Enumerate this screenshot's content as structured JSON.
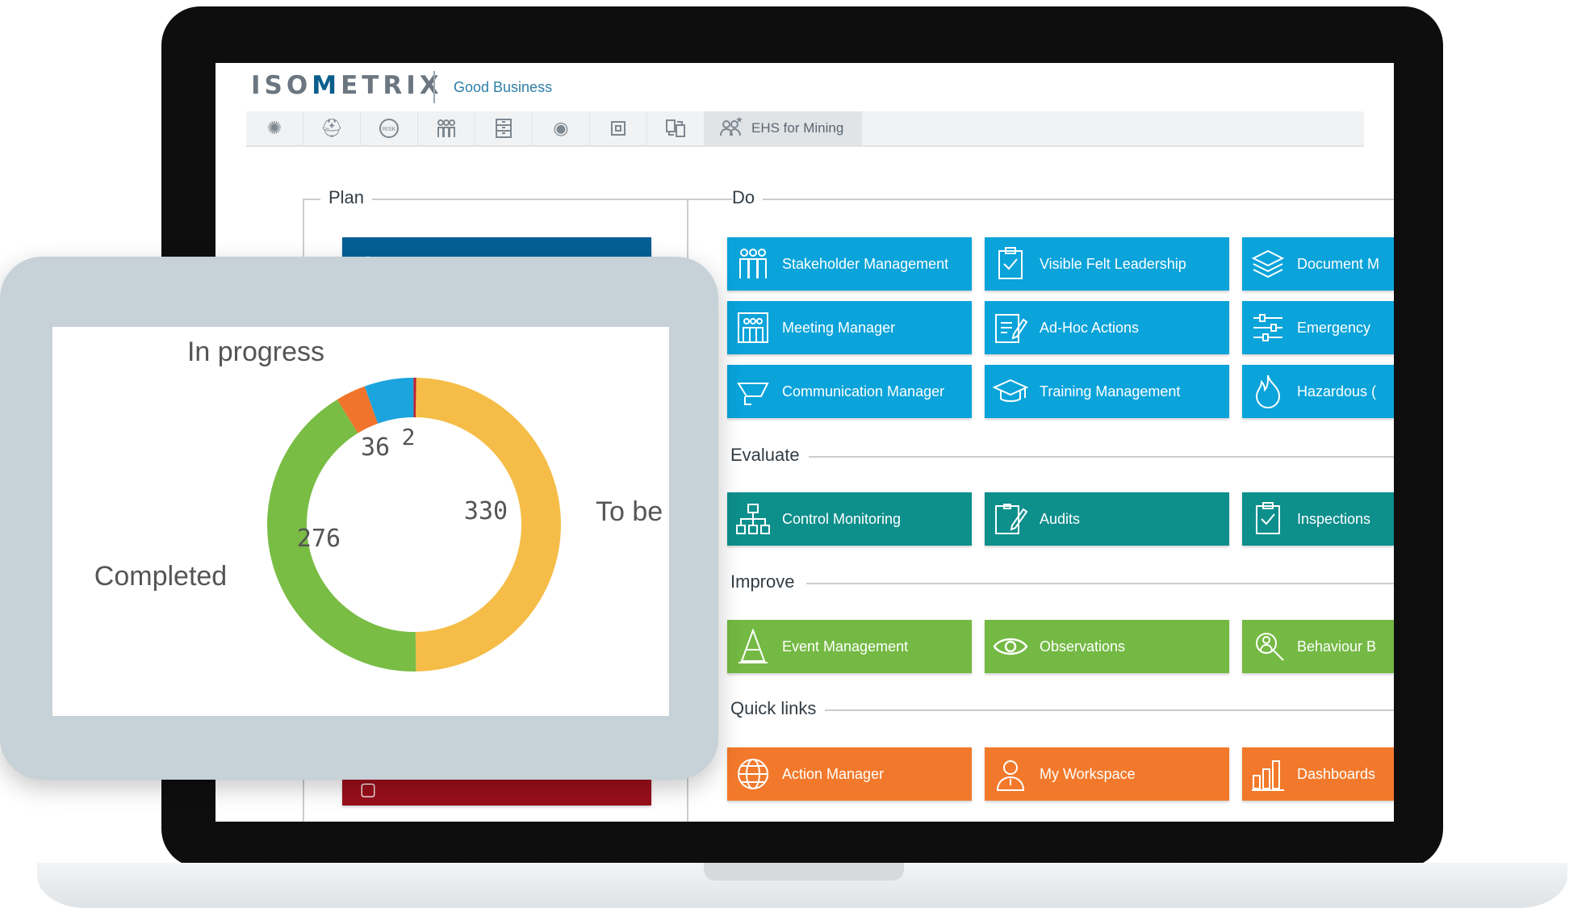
{
  "app": {
    "logo": {
      "prefix": "ISO",
      "accent": "M",
      "suffix": "ETRIX"
    },
    "tagline": "Good Business"
  },
  "toolbar": {
    "icons": [
      "atom-icon",
      "helmet-icon",
      "risk-icon",
      "people-icon",
      "cabinet-icon",
      "eye-icon",
      "chip-icon",
      "transfer-icon"
    ],
    "active_tab": {
      "icon": "users-star-icon",
      "label": "EHS for Mining"
    }
  },
  "sections": {
    "plan": "Plan",
    "do": "Do",
    "evaluate": "Evaluate",
    "improve": "Improve",
    "quick_links": "Quick links"
  },
  "do_tiles": [
    {
      "label": "Stakeholder Management",
      "icon": "stakeholders-icon"
    },
    {
      "label": "Visible Felt Leadership",
      "icon": "clipboard-check-icon"
    },
    {
      "label": "Document M",
      "icon": "layers-icon"
    },
    {
      "label": "Meeting Manager",
      "icon": "meeting-icon"
    },
    {
      "label": "Ad-Hoc Actions",
      "icon": "edit-document-icon"
    },
    {
      "label": "Emergency",
      "icon": "sliders-icon"
    },
    {
      "label": "Communication Manager",
      "icon": "megaphone-icon"
    },
    {
      "label": "Training Management",
      "icon": "graduation-cap-icon"
    },
    {
      "label": "Hazardous (",
      "icon": "flame-icon"
    }
  ],
  "evaluate_tiles": [
    {
      "label": "Control Monitoring",
      "icon": "org-chart-icon"
    },
    {
      "label": "Audits",
      "icon": "audit-pen-icon"
    },
    {
      "label": "Inspections",
      "icon": "clipboard-check-icon"
    }
  ],
  "improve_tiles": [
    {
      "label": "Event Management",
      "icon": "cone-icon"
    },
    {
      "label": "Observations",
      "icon": "eye-icon"
    },
    {
      "label": "Behaviour B",
      "icon": "magnifier-person-icon"
    }
  ],
  "quick_tiles": [
    {
      "label": "Action Manager",
      "icon": "globe-icon"
    },
    {
      "label": "My Workspace",
      "icon": "person-icon"
    },
    {
      "label": "Dashboards",
      "icon": "bar-chart-icon"
    }
  ],
  "colors": {
    "do": "#0aa3da",
    "evaluate": "#0d8f8c",
    "improve": "#74b943",
    "quick_links": "#f2792b"
  },
  "chart_data": {
    "type": "pie",
    "title": "",
    "donut": true,
    "segments": [
      {
        "name": "To be",
        "value": 330,
        "color": "#f5bd47"
      },
      {
        "name": "Completed",
        "value": 276,
        "color": "#79bd44"
      },
      {
        "name": "",
        "value": 22,
        "color": "#f0742b"
      },
      {
        "name": "In progress",
        "value": 36,
        "color": "#1ba4dd"
      },
      {
        "name": "",
        "value": 2,
        "color": "#c02135"
      }
    ],
    "outer_labels": [
      "In progress",
      "To be",
      "Completed"
    ],
    "value_labels": [
      "36",
      "2",
      "330",
      "276"
    ]
  }
}
